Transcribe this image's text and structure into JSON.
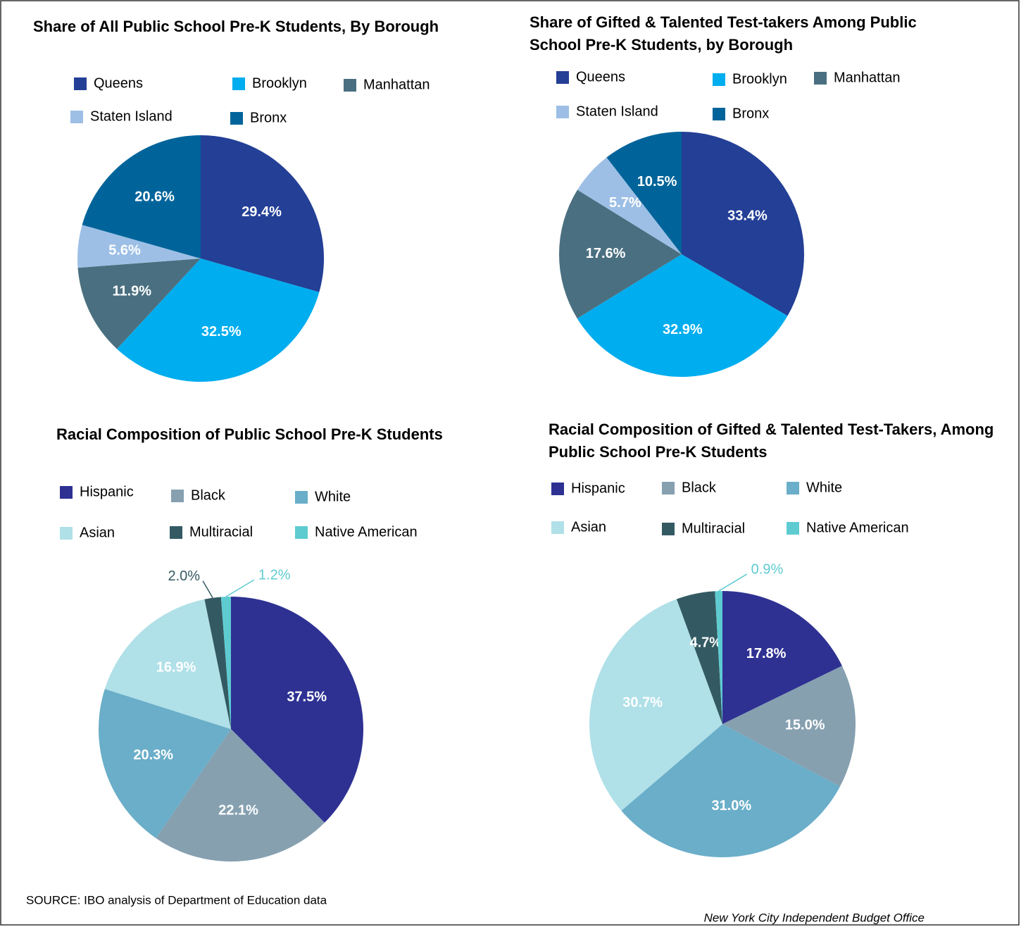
{
  "chart_data": [
    {
      "type": "pie",
      "title": "Share of All Public School Pre-K Students, By Borough",
      "categories": [
        "Queens",
        "Brooklyn",
        "Manhattan",
        "Staten Island",
        "Bronx"
      ],
      "values": [
        29.4,
        32.5,
        11.9,
        5.6,
        20.6
      ],
      "value_labels": [
        "29.4%",
        "32.5%",
        "11.9%",
        "5.6%",
        "20.6%"
      ],
      "colors": [
        "#233f96",
        "#00adee",
        "#4a6f80",
        "#9dbfe6",
        "#00649a"
      ]
    },
    {
      "type": "pie",
      "title": "Share of Gifted & Talented Test-takers Among Public School Pre-K Students, by Borough",
      "categories": [
        "Queens",
        "Brooklyn",
        "Manhattan",
        "Staten Island",
        "Bronx"
      ],
      "values": [
        33.4,
        32.9,
        17.6,
        5.7,
        10.5
      ],
      "value_labels": [
        "33.4%",
        "32.9%",
        "17.6%",
        "5.7%",
        "10.5%"
      ],
      "colors": [
        "#233f96",
        "#00adee",
        "#4a6f80",
        "#9dbfe6",
        "#00649a"
      ]
    },
    {
      "type": "pie",
      "title": "Racial Composition of Public School Pre-K Students",
      "categories": [
        "Hispanic",
        "Black",
        "White",
        "Asian",
        "Multiracial",
        "Native American"
      ],
      "values": [
        37.5,
        22.1,
        20.3,
        16.9,
        2.0,
        1.2
      ],
      "value_labels": [
        "37.5%",
        "22.1%",
        "20.3%",
        "16.9%",
        "2.0%",
        "1.2%"
      ],
      "colors": [
        "#2e3192",
        "#86a0b0",
        "#6aaec9",
        "#b0e0e8",
        "#335a62",
        "#5ecbd1"
      ]
    },
    {
      "type": "pie",
      "title": "Racial Composition of Gifted & Talented Test-Takers, Among Public School Pre-K Students",
      "categories": [
        "Hispanic",
        "Black",
        "White",
        "Asian",
        "Multiracial",
        "Native American"
      ],
      "values": [
        17.8,
        15.0,
        31.0,
        30.7,
        4.7,
        0.9
      ],
      "value_labels": [
        "17.8%",
        "15.0%",
        "31.0%",
        "30.7%",
        "4.7%",
        "0.9%"
      ],
      "colors": [
        "#2e3192",
        "#86a0b0",
        "#6aaec9",
        "#b0e0e8",
        "#335a62",
        "#5ecbd1"
      ]
    }
  ],
  "source": "SOURCE: IBO analysis of Department of Education data",
  "credit": "New York City Independent Budget Office"
}
